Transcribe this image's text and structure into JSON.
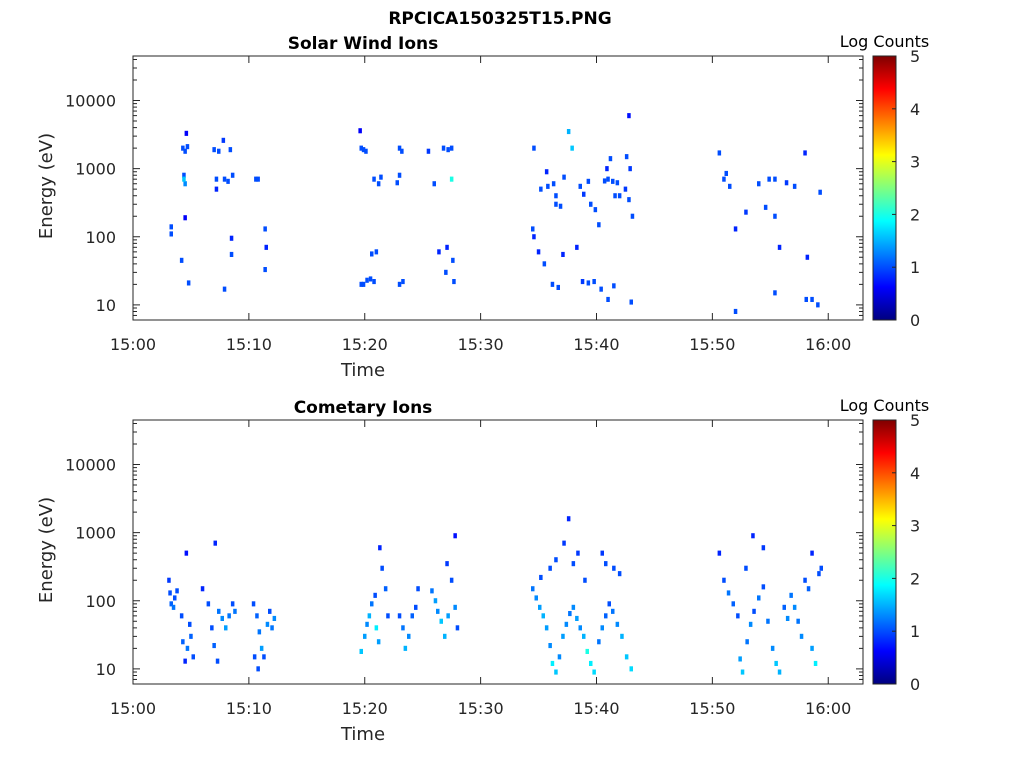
{
  "figure_title": "RPCICA150325T15.PNG",
  "chart_data": [
    {
      "type": "heatmap",
      "title": "Solar Wind Ions",
      "xlabel": "Time",
      "ylabel": "Energy (eV)",
      "y_scale": "log",
      "ylim": [
        6,
        45000
      ],
      "x_ticks": [
        "15:00",
        "15:10",
        "15:20",
        "15:30",
        "15:40",
        "15:50",
        "16:00"
      ],
      "xlim_minutes": [
        0,
        63
      ],
      "y_ticks": [
        "10",
        "100",
        "1000",
        "10000"
      ],
      "y_tick_values": [
        10,
        100,
        1000,
        10000
      ],
      "colorbar": {
        "label": "Log Counts",
        "min": 0,
        "max": 5,
        "ticks": [
          "0",
          "1",
          "2",
          "3",
          "4",
          "5"
        ],
        "colormap": "jet"
      },
      "cells": [
        [
          4.3,
          2000,
          1.0
        ],
        [
          4.5,
          1800,
          1.0
        ],
        [
          4.6,
          3300,
          0.6
        ],
        [
          4.7,
          2100,
          1.0
        ],
        [
          4.4,
          800,
          1.0
        ],
        [
          4.5,
          600,
          1.3
        ],
        [
          4.4,
          700,
          1.6
        ],
        [
          4.5,
          190,
          0.6
        ],
        [
          4.8,
          21,
          1.0
        ],
        [
          4.2,
          45,
          1.0
        ],
        [
          3.3,
          140,
          1.0
        ],
        [
          3.3,
          110,
          1.0
        ],
        [
          7.0,
          1900,
          1.0
        ],
        [
          7.4,
          1800,
          1.0
        ],
        [
          7.8,
          2600,
          0.9
        ],
        [
          8.4,
          1900,
          1.0
        ],
        [
          7.2,
          700,
          1.0
        ],
        [
          7.2,
          500,
          0.8
        ],
        [
          7.9,
          700,
          1.0
        ],
        [
          8.2,
          650,
          1.0
        ],
        [
          8.6,
          800,
          1.0
        ],
        [
          7.9,
          17,
          1.0
        ],
        [
          8.5,
          55,
          1.0
        ],
        [
          8.5,
          95,
          0.8
        ],
        [
          10.6,
          700,
          1.0
        ],
        [
          10.8,
          700,
          1.0
        ],
        [
          11.4,
          130,
          1.0
        ],
        [
          11.5,
          70,
          0.8
        ],
        [
          11.4,
          33,
          1.0
        ],
        [
          19.7,
          2000,
          1.0
        ],
        [
          19.9,
          1900,
          1.0
        ],
        [
          20.1,
          1800,
          1.0
        ],
        [
          19.6,
          3600,
          0.6
        ],
        [
          20.8,
          700,
          1.0
        ],
        [
          21.2,
          600,
          1.0
        ],
        [
          21.4,
          750,
          1.0
        ],
        [
          20.6,
          56,
          1.0
        ],
        [
          21.0,
          60,
          1.0
        ],
        [
          19.7,
          20,
          1.0
        ],
        [
          19.9,
          20,
          1.0
        ],
        [
          20.2,
          23,
          1.0
        ],
        [
          20.5,
          24,
          1.0
        ],
        [
          20.8,
          22,
          1.0
        ],
        [
          23.0,
          2000,
          1.0
        ],
        [
          23.2,
          1800,
          1.0
        ],
        [
          22.8,
          620,
          1.0
        ],
        [
          23.0,
          800,
          1.0
        ],
        [
          23.0,
          20,
          1.0
        ],
        [
          23.3,
          22,
          1.0
        ],
        [
          25.5,
          1800,
          0.9
        ],
        [
          26.8,
          2000,
          1.0
        ],
        [
          27.2,
          1900,
          1.0
        ],
        [
          27.5,
          2000,
          1.0
        ],
        [
          27.5,
          700,
          2.0
        ],
        [
          26.0,
          600,
          1.0
        ],
        [
          27.1,
          70,
          0.8
        ],
        [
          27.6,
          45,
          1.0
        ],
        [
          27.7,
          22,
          1.0
        ],
        [
          26.4,
          60,
          0.8
        ],
        [
          27.0,
          30,
          1.0
        ],
        [
          34.6,
          2000,
          1.0
        ],
        [
          35.7,
          900,
          0.8
        ],
        [
          34.5,
          130,
          1.0
        ],
        [
          34.6,
          100,
          0.8
        ],
        [
          35.0,
          60,
          0.8
        ],
        [
          35.5,
          40,
          1.0
        ],
        [
          35.2,
          500,
          1.0
        ],
        [
          35.8,
          550,
          1.0
        ],
        [
          36.3,
          600,
          1.0
        ],
        [
          36.5,
          400,
          1.0
        ],
        [
          36.5,
          300,
          1.0
        ],
        [
          36.9,
          280,
          1.0
        ],
        [
          37.6,
          3500,
          1.5
        ],
        [
          37.9,
          2000,
          1.6
        ],
        [
          37.2,
          750,
          1.0
        ],
        [
          38.6,
          550,
          1.0
        ],
        [
          38.9,
          420,
          0.9
        ],
        [
          39.3,
          650,
          1.0
        ],
        [
          39.5,
          300,
          1.0
        ],
        [
          39.9,
          250,
          1.0
        ],
        [
          40.2,
          150,
          1.0
        ],
        [
          40.7,
          660,
          1.0
        ],
        [
          41.0,
          700,
          1.0
        ],
        [
          41.4,
          650,
          1.0
        ],
        [
          41.8,
          620,
          1.0
        ],
        [
          41.6,
          400,
          1.0
        ],
        [
          42.0,
          400,
          1.0
        ],
        [
          42.5,
          500,
          0.9
        ],
        [
          42.8,
          350,
          1.0
        ],
        [
          43.1,
          200,
          1.0
        ],
        [
          41.2,
          1400,
          1.0
        ],
        [
          40.9,
          1000,
          0.8
        ],
        [
          42.9,
          1000,
          0.9
        ],
        [
          42.6,
          1500,
          1.0
        ],
        [
          42.8,
          6000,
          0.7
        ],
        [
          36.2,
          20,
          1.0
        ],
        [
          36.7,
          18,
          1.0
        ],
        [
          37.1,
          55,
          0.8
        ],
        [
          38.3,
          70,
          0.8
        ],
        [
          38.8,
          22,
          0.9
        ],
        [
          39.3,
          21,
          1.0
        ],
        [
          39.8,
          22,
          1.0
        ],
        [
          40.4,
          17,
          1.0
        ],
        [
          41.0,
          12,
          1.0
        ],
        [
          41.5,
          19,
          1.0
        ],
        [
          43.0,
          11,
          1.0
        ],
        [
          50.6,
          1700,
          1.0
        ],
        [
          51.0,
          700,
          1.0
        ],
        [
          51.5,
          550,
          1.0
        ],
        [
          51.2,
          850,
          1.0
        ],
        [
          52.9,
          230,
          0.9
        ],
        [
          52.0,
          130,
          0.8
        ],
        [
          54.0,
          600,
          1.0
        ],
        [
          54.6,
          270,
          1.0
        ],
        [
          54.9,
          700,
          1.0
        ],
        [
          55.4,
          700,
          1.0
        ],
        [
          55.4,
          200,
          1.0
        ],
        [
          56.4,
          620,
          0.9
        ],
        [
          57.1,
          550,
          1.0
        ],
        [
          58.0,
          1700,
          0.8
        ],
        [
          59.3,
          450,
          1.0
        ],
        [
          58.2,
          50,
          0.8
        ],
        [
          52.0,
          8,
          1.0
        ],
        [
          55.4,
          15,
          1.0
        ],
        [
          58.1,
          12,
          1.0
        ],
        [
          58.6,
          12,
          1.0
        ],
        [
          59.1,
          10,
          1.0
        ],
        [
          55.8,
          70,
          0.8
        ]
      ]
    },
    {
      "type": "heatmap",
      "title": "Cometary Ions",
      "xlabel": "Time",
      "ylabel": "Energy (eV)",
      "y_scale": "log",
      "ylim": [
        6,
        45000
      ],
      "x_ticks": [
        "15:00",
        "15:10",
        "15:20",
        "15:30",
        "15:40",
        "15:50",
        "16:00"
      ],
      "xlim_minutes": [
        0,
        63
      ],
      "y_ticks": [
        "10",
        "100",
        "1000",
        "10000"
      ],
      "y_tick_values": [
        10,
        100,
        1000,
        10000
      ],
      "colorbar": {
        "label": "Log Counts",
        "min": 0,
        "max": 5,
        "ticks": [
          "0",
          "1",
          "2",
          "3",
          "4",
          "5"
        ],
        "colormap": "jet"
      },
      "cells": [
        [
          3.1,
          200,
          0.9
        ],
        [
          3.2,
          130,
          1.0
        ],
        [
          3.3,
          90,
          1.1
        ],
        [
          3.5,
          80,
          1.2
        ],
        [
          3.6,
          110,
          1.0
        ],
        [
          3.8,
          140,
          1.0
        ],
        [
          4.2,
          60,
          1.0
        ],
        [
          4.3,
          25,
          1.1
        ],
        [
          4.5,
          13,
          0.8
        ],
        [
          4.7,
          20,
          1.2
        ],
        [
          4.9,
          45,
          1.0
        ],
        [
          4.6,
          500,
          0.7
        ],
        [
          5.0,
          30,
          1.1
        ],
        [
          5.2,
          15,
          1.0
        ],
        [
          6.0,
          150,
          0.8
        ],
        [
          6.5,
          90,
          1.0
        ],
        [
          6.8,
          40,
          1.0
        ],
        [
          7.0,
          22,
          1.1
        ],
        [
          7.3,
          13,
          1.0
        ],
        [
          7.4,
          70,
          1.2
        ],
        [
          7.7,
          55,
          1.3
        ],
        [
          8.0,
          40,
          1.4
        ],
        [
          8.3,
          60,
          1.2
        ],
        [
          8.6,
          90,
          1.0
        ],
        [
          8.8,
          70,
          1.2
        ],
        [
          7.1,
          700,
          0.8
        ],
        [
          10.4,
          90,
          1.0
        ],
        [
          10.7,
          60,
          1.1
        ],
        [
          10.9,
          35,
          1.2
        ],
        [
          11.1,
          20,
          1.4
        ],
        [
          11.3,
          15,
          1.0
        ],
        [
          11.6,
          45,
          1.3
        ],
        [
          11.8,
          70,
          1.0
        ],
        [
          12.0,
          40,
          1.2
        ],
        [
          12.2,
          55,
          1.3
        ],
        [
          10.5,
          15,
          1.0
        ],
        [
          10.8,
          10,
          1.0
        ],
        [
          19.7,
          18,
          1.6
        ],
        [
          20.0,
          30,
          1.4
        ],
        [
          20.2,
          45,
          1.3
        ],
        [
          20.4,
          60,
          1.5
        ],
        [
          20.6,
          90,
          1.2
        ],
        [
          20.9,
          120,
          1.0
        ],
        [
          21.0,
          40,
          1.8
        ],
        [
          21.2,
          25,
          1.4
        ],
        [
          21.5,
          300,
          1.0
        ],
        [
          21.8,
          150,
          1.1
        ],
        [
          22.0,
          60,
          1.0
        ],
        [
          21.3,
          600,
          0.8
        ],
        [
          23.0,
          60,
          1.0
        ],
        [
          23.3,
          40,
          1.2
        ],
        [
          23.5,
          20,
          1.5
        ],
        [
          23.8,
          30,
          1.3
        ],
        [
          24.1,
          60,
          1.1
        ],
        [
          24.4,
          80,
          1.0
        ],
        [
          24.6,
          150,
          1.0
        ],
        [
          25.8,
          140,
          1.2
        ],
        [
          26.1,
          100,
          1.4
        ],
        [
          26.3,
          70,
          1.3
        ],
        [
          26.6,
          50,
          1.6
        ],
        [
          26.9,
          30,
          1.5
        ],
        [
          27.2,
          60,
          1.4
        ],
        [
          27.5,
          200,
          1.0
        ],
        [
          27.8,
          80,
          1.3
        ],
        [
          28.0,
          40,
          1.0
        ],
        [
          27.1,
          350,
          0.9
        ],
        [
          27.8,
          900,
          0.7
        ],
        [
          34.5,
          150,
          1.2
        ],
        [
          34.8,
          110,
          1.3
        ],
        [
          35.1,
          80,
          1.4
        ],
        [
          35.4,
          60,
          1.5
        ],
        [
          35.7,
          40,
          1.4
        ],
        [
          36.0,
          22,
          1.3
        ],
        [
          36.2,
          12,
          1.8
        ],
        [
          36.5,
          9,
          1.6
        ],
        [
          36.8,
          15,
          1.3
        ],
        [
          37.1,
          30,
          1.4
        ],
        [
          37.4,
          45,
          1.3
        ],
        [
          37.7,
          65,
          1.2
        ],
        [
          38.0,
          80,
          1.3
        ],
        [
          38.3,
          55,
          1.4
        ],
        [
          38.6,
          40,
          1.3
        ],
        [
          38.9,
          30,
          1.5
        ],
        [
          39.2,
          18,
          2.0
        ],
        [
          39.5,
          12,
          1.8
        ],
        [
          39.8,
          9,
          1.7
        ],
        [
          40.2,
          25,
          1.2
        ],
        [
          40.5,
          40,
          1.3
        ],
        [
          40.8,
          60,
          1.1
        ],
        [
          41.1,
          90,
          1.0
        ],
        [
          41.4,
          70,
          1.2
        ],
        [
          41.8,
          45,
          1.3
        ],
        [
          42.2,
          30,
          1.5
        ],
        [
          42.6,
          15,
          1.6
        ],
        [
          43.0,
          10,
          1.7
        ],
        [
          36.0,
          300,
          1.0
        ],
        [
          36.5,
          400,
          1.0
        ],
        [
          37.2,
          700,
          0.9
        ],
        [
          37.6,
          1600,
          0.8
        ],
        [
          38.4,
          500,
          0.9
        ],
        [
          40.5,
          500,
          0.9
        ],
        [
          40.8,
          350,
          1.0
        ],
        [
          41.5,
          300,
          1.0
        ],
        [
          39.0,
          200,
          1.0
        ],
        [
          42.0,
          250,
          1.0
        ],
        [
          35.2,
          220,
          1.0
        ],
        [
          38.0,
          350,
          1.0
        ],
        [
          50.6,
          500,
          0.8
        ],
        [
          51.0,
          200,
          1.0
        ],
        [
          51.4,
          130,
          1.2
        ],
        [
          51.8,
          90,
          1.1
        ],
        [
          52.2,
          60,
          1.0
        ],
        [
          52.4,
          14,
          1.4
        ],
        [
          52.6,
          9,
          1.6
        ],
        [
          53.0,
          25,
          1.2
        ],
        [
          53.3,
          45,
          1.3
        ],
        [
          53.6,
          70,
          1.0
        ],
        [
          54.0,
          110,
          1.2
        ],
        [
          54.4,
          160,
          1.0
        ],
        [
          54.8,
          50,
          1.2
        ],
        [
          55.2,
          20,
          1.3
        ],
        [
          55.5,
          12,
          1.6
        ],
        [
          55.8,
          9,
          1.5
        ],
        [
          56.2,
          80,
          1.1
        ],
        [
          56.5,
          55,
          1.3
        ],
        [
          56.8,
          120,
          1.2
        ],
        [
          57.1,
          80,
          1.3
        ],
        [
          57.4,
          50,
          1.2
        ],
        [
          57.7,
          30,
          1.3
        ],
        [
          58.0,
          200,
          1.0
        ],
        [
          58.3,
          150,
          1.1
        ],
        [
          58.6,
          20,
          1.4
        ],
        [
          58.9,
          12,
          1.8
        ],
        [
          59.2,
          250,
          1.0
        ],
        [
          59.4,
          300,
          1.0
        ],
        [
          53.5,
          900,
          0.8
        ],
        [
          54.4,
          600,
          0.9
        ],
        [
          58.6,
          500,
          0.8
        ],
        [
          52.9,
          300,
          1.0
        ]
      ]
    }
  ]
}
